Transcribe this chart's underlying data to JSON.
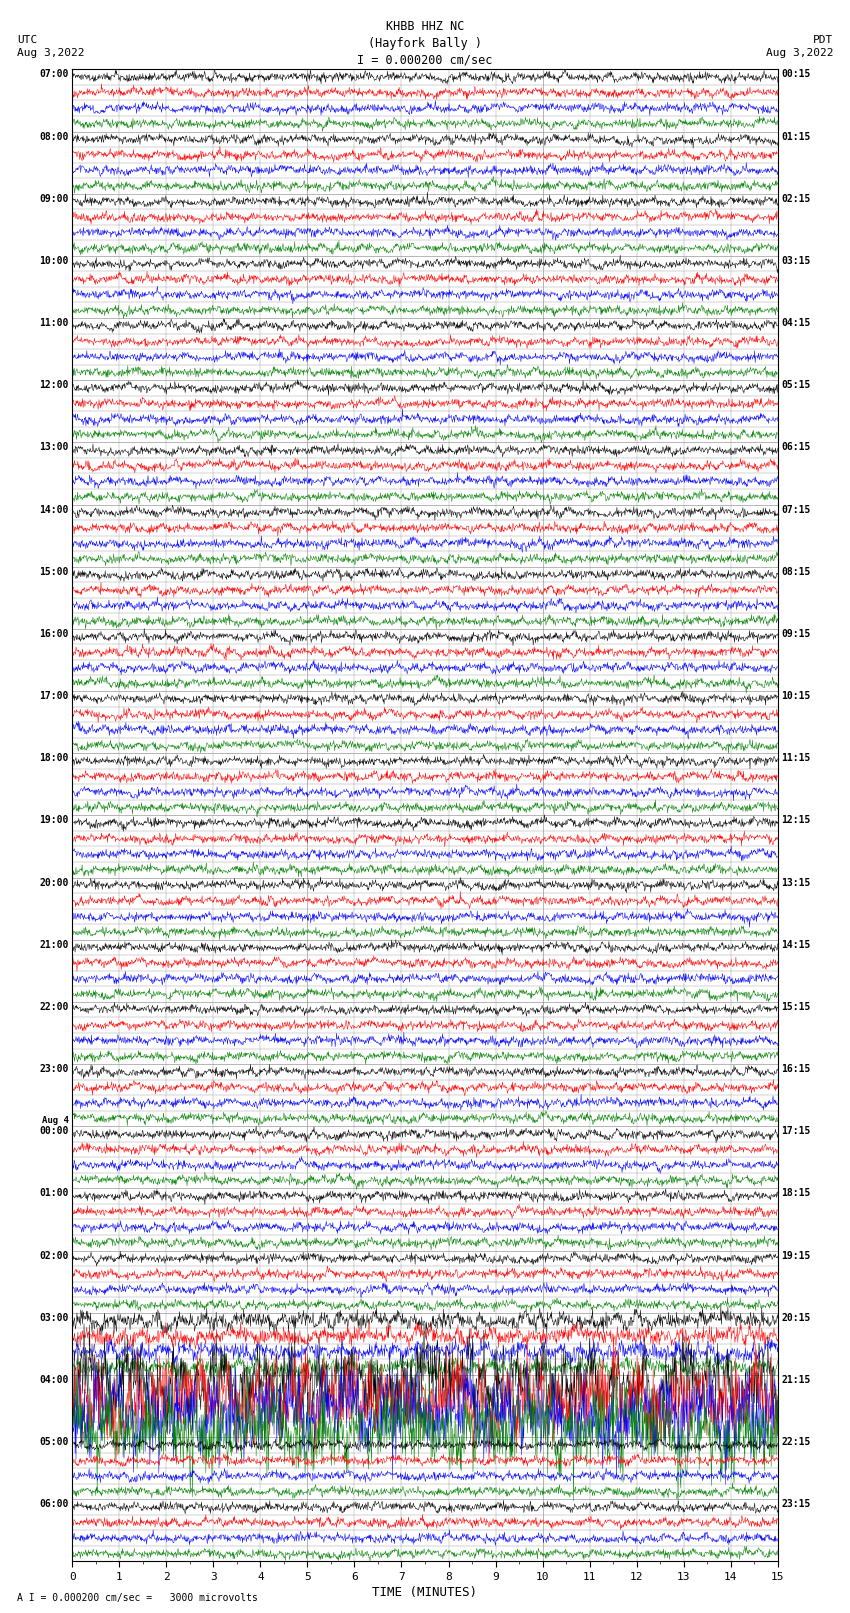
{
  "title_line1": "KHBB HHZ NC",
  "title_line2": "(Hayfork Bally )",
  "scale_label": "I = 0.000200 cm/sec",
  "left_header1": "UTC",
  "left_header2": "Aug 3,2022",
  "right_header1": "PDT",
  "right_header2": "Aug 3,2022",
  "bottom_label": "TIME (MINUTES)",
  "bottom_note": "A I = 0.000200 cm/sec =   3000 microvolts",
  "xlim": [
    0,
    15
  ],
  "xticks": [
    0,
    1,
    2,
    3,
    4,
    5,
    6,
    7,
    8,
    9,
    10,
    11,
    12,
    13,
    14,
    15
  ],
  "utc_labels": [
    "07:00",
    "08:00",
    "09:00",
    "10:00",
    "11:00",
    "12:00",
    "13:00",
    "14:00",
    "15:00",
    "16:00",
    "17:00",
    "18:00",
    "19:00",
    "20:00",
    "21:00",
    "22:00",
    "23:00",
    "Aug 4\n00:00",
    "01:00",
    "02:00",
    "03:00",
    "04:00",
    "05:00",
    "06:00"
  ],
  "pdt_labels": [
    "00:15",
    "01:15",
    "02:15",
    "03:15",
    "04:15",
    "05:15",
    "06:15",
    "07:15",
    "08:15",
    "09:15",
    "10:15",
    "11:15",
    "12:15",
    "13:15",
    "14:15",
    "15:15",
    "16:15",
    "17:15",
    "18:15",
    "19:15",
    "20:15",
    "21:15",
    "22:15",
    "23:15"
  ],
  "n_hours": 24,
  "traces_per_hour": 4,
  "trace_colors": [
    "black",
    "red",
    "blue",
    "green"
  ],
  "background_color": "white",
  "grid_color": "#999999",
  "noise_amplitude": 0.25,
  "fig_width": 8.5,
  "fig_height": 16.13,
  "dpi": 100
}
